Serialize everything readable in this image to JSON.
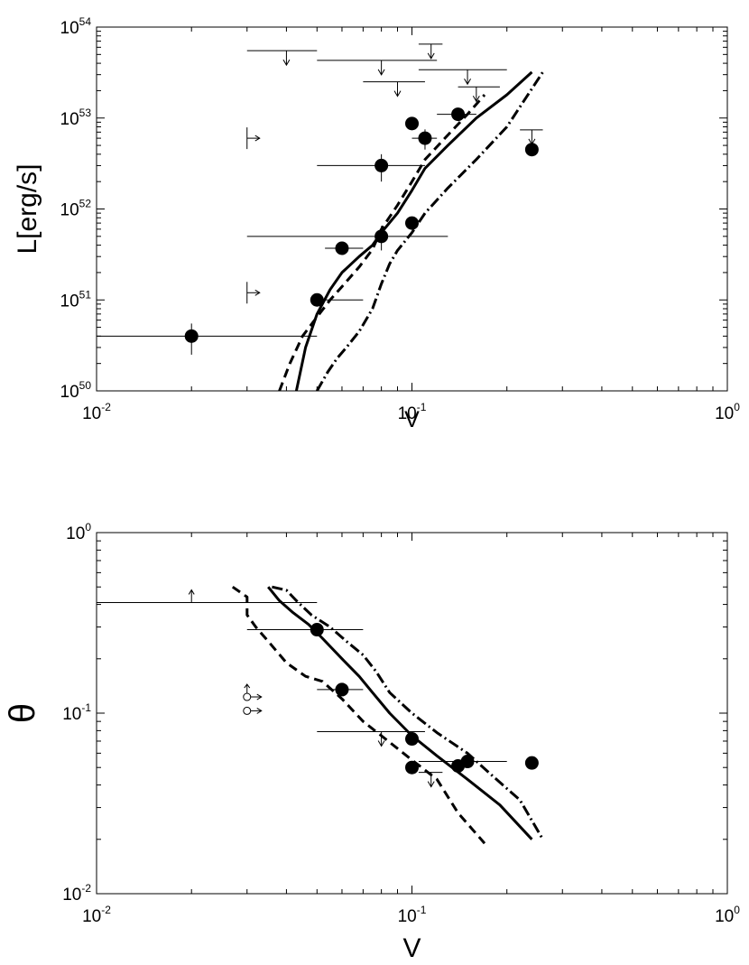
{
  "chart_data": [
    {
      "type": "scatter",
      "panel": "top",
      "xlabel": "V",
      "ylabel": "L[erg/s]",
      "xscale": "log",
      "yscale": "log",
      "xlim": [
        0.01,
        1
      ],
      "ylim": [
        1e+50,
        1e+54
      ],
      "x_ticks": [
        {
          "base": "10",
          "exp": "-2",
          "value": 0.01
        },
        {
          "base": "10",
          "exp": "-1",
          "value": 0.1
        },
        {
          "base": "10",
          "exp": "0",
          "value": 1
        }
      ],
      "y_ticks": [
        {
          "base": "10",
          "exp": "50",
          "value": 1e+50
        },
        {
          "base": "10",
          "exp": "51",
          "value": 1e+51
        },
        {
          "base": "10",
          "exp": "52",
          "value": 1e+52
        },
        {
          "base": "10",
          "exp": "53",
          "value": 1e+53
        },
        {
          "base": "10",
          "exp": "54",
          "value": 1e+54
        }
      ],
      "points": [
        {
          "x": 0.02,
          "y": 4e+50,
          "xerr": [
            0.0055,
            0.05
          ],
          "yerr": [
            2.5e+50,
            5.5e+50
          ]
        },
        {
          "x": 0.05,
          "y": 1e+51,
          "xerr": [
            0.05,
            0.07
          ]
        },
        {
          "x": 0.06,
          "y": 3.7e+51,
          "xerr": [
            0.053,
            0.07
          ]
        },
        {
          "x": 0.08,
          "y": 5e+51,
          "xerr": [
            0.03,
            0.13
          ],
          "yerr": [
            3.5e+51,
            6.5e+51
          ]
        },
        {
          "x": 0.08,
          "y": 3e+52,
          "xerr": [
            0.05,
            0.11
          ],
          "yerr": [
            2e+52,
            4e+52
          ]
        },
        {
          "x": 0.1,
          "y": 7e+51
        },
        {
          "x": 0.1,
          "y": 8.7e+52
        },
        {
          "x": 0.11,
          "y": 6e+52,
          "xerr": [
            0.1,
            0.12
          ],
          "yerr": [
            4.5e+52,
            7.5e+52
          ]
        },
        {
          "x": 0.14,
          "y": 1.1e+53,
          "xerr": [
            0.12,
            0.16
          ]
        },
        {
          "x": 0.24,
          "y": 4.5e+52
        }
      ],
      "upper_limits": [
        {
          "x": 0.04,
          "y": 5.5e+53,
          "xerr": [
            0.03,
            0.05
          ]
        },
        {
          "x": 0.08,
          "y": 4.3e+53,
          "xerr": [
            0.05,
            0.12
          ]
        },
        {
          "x": 0.09,
          "y": 2.5e+53,
          "xerr": [
            0.07,
            0.11
          ]
        },
        {
          "x": 0.115,
          "y": 6.5e+53,
          "xerr": [
            0.105,
            0.125
          ]
        },
        {
          "x": 0.15,
          "y": 3.4e+53,
          "xerr": [
            0.105,
            0.2
          ]
        },
        {
          "x": 0.16,
          "y": 2.2e+53,
          "xerr": [
            0.14,
            0.19
          ]
        },
        {
          "x": 0.24,
          "y": 7.4e+52,
          "xerr": [
            0.22,
            0.26
          ]
        }
      ],
      "lower_limits_x": [
        {
          "x": 0.03,
          "y": 6e+52
        },
        {
          "x": 0.03,
          "y": 1.2e+51
        }
      ],
      "series": [
        {
          "style": "solid",
          "x": [
            0.043,
            0.046,
            0.05,
            0.055,
            0.06,
            0.068,
            0.075,
            0.08,
            0.09,
            0.1,
            0.11,
            0.13,
            0.16,
            0.2,
            0.24
          ],
          "y": [
            1e+50,
            3e+50,
            7e+50,
            1.3e+51,
            2e+51,
            3e+51,
            4e+51,
            5.5e+51,
            9e+51,
            1.6e+52,
            2.8e+52,
            5e+52,
            1e+53,
            1.8e+53,
            3.2e+53
          ]
        },
        {
          "style": "dashed",
          "x": [
            0.038,
            0.041,
            0.045,
            0.05,
            0.055,
            0.06,
            0.068,
            0.075,
            0.08,
            0.09,
            0.1,
            0.11,
            0.13,
            0.15,
            0.17
          ],
          "y": [
            1e+50,
            2e+50,
            4e+50,
            6.5e+50,
            1e+51,
            1.4e+51,
            2.3e+51,
            3.6e+51,
            6e+51,
            1.1e+52,
            2e+52,
            3.5e+52,
            6.5e+52,
            1.1e+53,
            1.8e+53
          ]
        },
        {
          "style": "dashdot",
          "x": [
            0.05,
            0.054,
            0.058,
            0.062,
            0.068,
            0.075,
            0.08,
            0.085,
            0.09,
            0.1,
            0.11,
            0.13,
            0.16,
            0.2,
            0.26
          ],
          "y": [
            1e+50,
            1.6e+50,
            2.3e+50,
            3e+50,
            4.5e+50,
            8e+50,
            1.5e+51,
            2.5e+51,
            3.5e+51,
            5.5e+51,
            9e+51,
            1.7e+52,
            3.5e+52,
            8e+52,
            3.2e+53
          ]
        }
      ]
    },
    {
      "type": "scatter",
      "panel": "bottom",
      "xlabel": "V",
      "ylabel": "θ",
      "xscale": "log",
      "yscale": "log",
      "xlim": [
        0.01,
        1
      ],
      "ylim": [
        0.01,
        1
      ],
      "x_ticks": [
        {
          "base": "10",
          "exp": "-2",
          "value": 0.01
        },
        {
          "base": "10",
          "exp": "-1",
          "value": 0.1
        },
        {
          "base": "10",
          "exp": "0",
          "value": 1
        }
      ],
      "y_ticks": [
        {
          "base": "10",
          "exp": "-2",
          "value": 0.01
        },
        {
          "base": "10",
          "exp": "-1",
          "value": 0.1
        },
        {
          "base": "10",
          "exp": "0",
          "value": 1
        }
      ],
      "points": [
        {
          "x": 0.05,
          "y": 0.29,
          "xerr": [
            0.03,
            0.07
          ]
        },
        {
          "x": 0.06,
          "y": 0.135,
          "xerr": [
            0.05,
            0.07
          ]
        },
        {
          "x": 0.1,
          "y": 0.072
        },
        {
          "x": 0.1,
          "y": 0.05
        },
        {
          "x": 0.14,
          "y": 0.051
        },
        {
          "x": 0.15,
          "y": 0.054,
          "xerr": [
            0.105,
            0.2
          ]
        },
        {
          "x": 0.24,
          "y": 0.053
        }
      ],
      "upper_limits": [
        {
          "x": 0.08,
          "y": 0.079,
          "xerr": [
            0.05,
            0.11
          ]
        },
        {
          "x": 0.115,
          "y": 0.047,
          "xerr": [
            0.105,
            0.125
          ]
        }
      ],
      "lower_limits": [
        {
          "x": 0.02,
          "y": 0.41,
          "xerr": [
            0.01,
            0.05
          ]
        }
      ],
      "open_markers": [
        {
          "x": 0.03,
          "y": 0.123
        },
        {
          "x": 0.03,
          "y": 0.103
        }
      ],
      "series": [
        {
          "style": "solid",
          "x": [
            0.035,
            0.038,
            0.042,
            0.047,
            0.052,
            0.06,
            0.068,
            0.075,
            0.085,
            0.1,
            0.12,
            0.15,
            0.19,
            0.24
          ],
          "y": [
            0.5,
            0.42,
            0.36,
            0.31,
            0.26,
            0.2,
            0.16,
            0.13,
            0.1,
            0.075,
            0.058,
            0.043,
            0.031,
            0.02
          ]
        },
        {
          "style": "dashed",
          "x": [
            0.027,
            0.03,
            0.03,
            0.032,
            0.035,
            0.04,
            0.046,
            0.052,
            0.06,
            0.07,
            0.08,
            0.1,
            0.12,
            0.14,
            0.17
          ],
          "y": [
            0.5,
            0.44,
            0.35,
            0.3,
            0.25,
            0.19,
            0.16,
            0.15,
            0.12,
            0.09,
            0.075,
            0.055,
            0.043,
            0.028,
            0.019
          ]
        },
        {
          "style": "dashdot",
          "x": [
            0.036,
            0.04,
            0.043,
            0.048,
            0.055,
            0.062,
            0.07,
            0.077,
            0.085,
            0.1,
            0.12,
            0.15,
            0.18,
            0.22,
            0.26
          ],
          "y": [
            0.5,
            0.48,
            0.42,
            0.35,
            0.3,
            0.25,
            0.21,
            0.17,
            0.13,
            0.1,
            0.078,
            0.06,
            0.045,
            0.033,
            0.02
          ]
        }
      ]
    }
  ]
}
